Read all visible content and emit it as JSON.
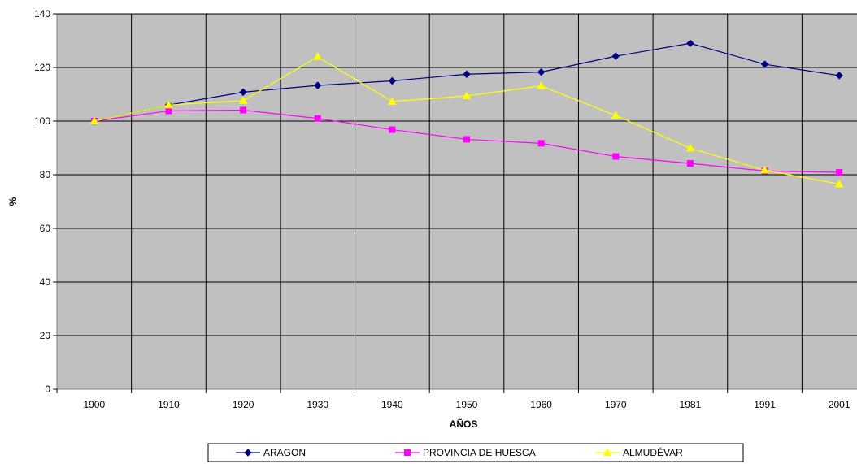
{
  "chart_data": {
    "type": "line",
    "categories": [
      "1900",
      "1910",
      "1920",
      "1930",
      "1940",
      "1950",
      "1960",
      "1970",
      "1981",
      "1991",
      "2001"
    ],
    "series": [
      {
        "name": "ARAGON",
        "values": [
          100,
          106,
          110.8,
          113.3,
          115,
          117.5,
          118.3,
          124.2,
          129,
          121.2,
          117
        ],
        "color": "#000080",
        "marker": "diamond"
      },
      {
        "name": "PROVINCIA DE HUESCA",
        "values": [
          100,
          103.8,
          104.1,
          101,
          96.8,
          93.2,
          91.7,
          86.8,
          84.2,
          81.4,
          80.9
        ],
        "color": "#FF00FF",
        "marker": "square"
      },
      {
        "name": "ALMUDÉVAR",
        "values": [
          100,
          106,
          107.6,
          124,
          107.3,
          109.4,
          113.1,
          102.1,
          89.9,
          81.7,
          76.5
        ],
        "color": "#FFFF00",
        "marker": "triangle"
      }
    ],
    "title": "",
    "xlabel": "AÑOS",
    "ylabel": "%",
    "ylim": [
      0,
      140
    ],
    "yticks": [
      "0",
      "20",
      "40",
      "60",
      "80",
      "100",
      "120",
      "140"
    ],
    "grid": true,
    "plot_background": "#C0C0C0",
    "legend_position": "bottom"
  }
}
